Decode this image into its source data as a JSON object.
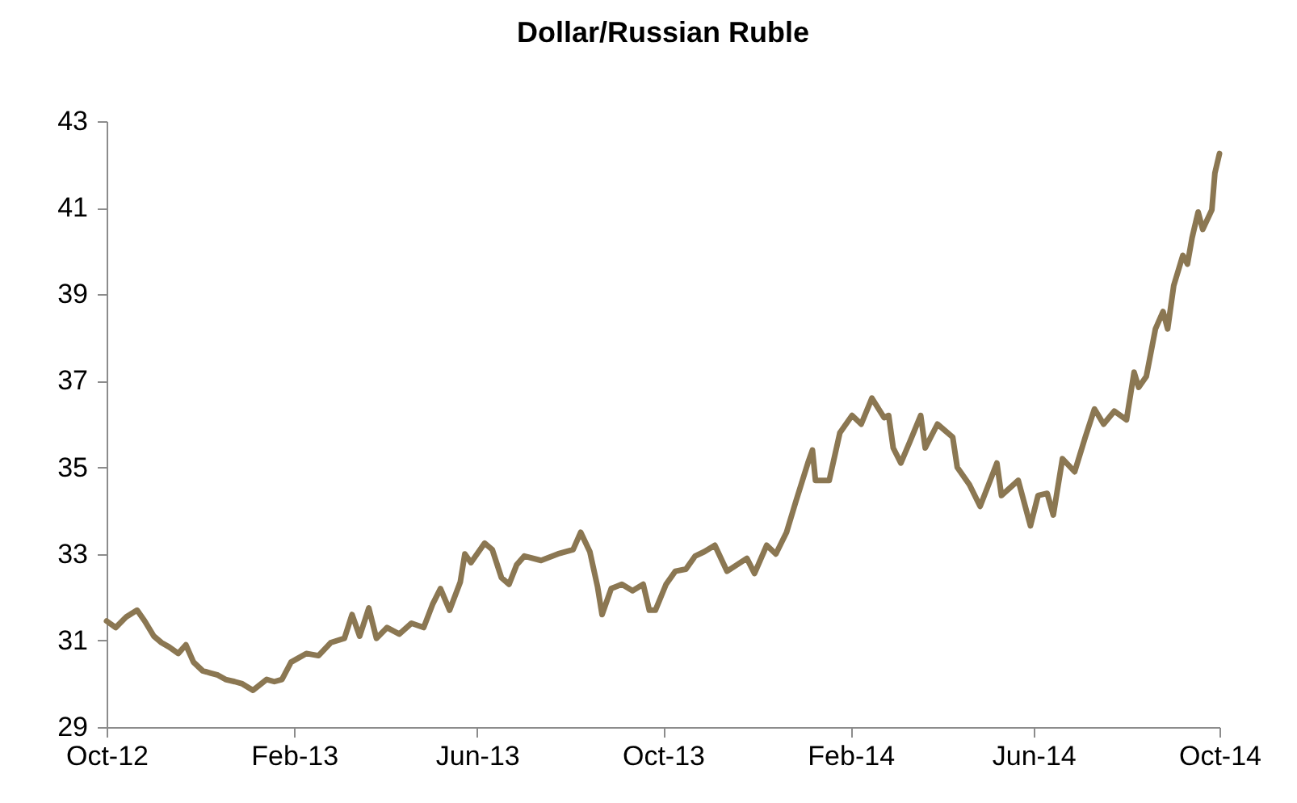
{
  "chart_data": {
    "type": "line",
    "title": "Dollar/Russian Ruble",
    "x": [
      "2012-10-01",
      "2012-10-07",
      "2012-10-14",
      "2012-10-21",
      "2012-10-26",
      "2012-11-01",
      "2012-11-06",
      "2012-11-11",
      "2012-11-17",
      "2012-11-22",
      "2012-11-27",
      "2012-12-03",
      "2012-12-08",
      "2012-12-13",
      "2012-12-18",
      "2012-12-24",
      "2012-12-29",
      "2013-01-05",
      "2013-01-14",
      "2013-01-19",
      "2013-01-24",
      "2013-01-30",
      "2013-02-09",
      "2013-02-17",
      "2013-02-25",
      "2013-03-06",
      "2013-03-11",
      "2013-03-16",
      "2013-03-22",
      "2013-03-27",
      "2013-04-03",
      "2013-04-11",
      "2013-04-19",
      "2013-04-27",
      "2013-05-03",
      "2013-05-08",
      "2013-05-14",
      "2013-05-21",
      "2013-05-24",
      "2013-05-28",
      "2013-06-06",
      "2013-06-11",
      "2013-06-17",
      "2013-06-22",
      "2013-06-27",
      "2013-07-02",
      "2013-07-13",
      "2013-07-24",
      "2013-08-03",
      "2013-08-08",
      "2013-08-14",
      "2013-08-19",
      "2013-08-22",
      "2013-08-28",
      "2013-09-04",
      "2013-09-11",
      "2013-09-18",
      "2013-09-22",
      "2013-09-26",
      "2013-10-03",
      "2013-10-09",
      "2013-10-16",
      "2013-10-22",
      "2013-10-28",
      "2013-11-04",
      "2013-11-12",
      "2013-11-25",
      "2013-11-30",
      "2013-12-08",
      "2013-12-14",
      "2013-12-21",
      "2013-12-27",
      "2014-01-04",
      "2014-01-07",
      "2014-01-09",
      "2014-01-18",
      "2014-01-25",
      "2014-02-02",
      "2014-02-08",
      "2014-02-15",
      "2014-02-23",
      "2014-02-26",
      "2014-03-01",
      "2014-03-06",
      "2014-03-12",
      "2014-03-19",
      "2014-03-22",
      "2014-03-30",
      "2014-04-09",
      "2014-04-12",
      "2014-04-20",
      "2014-04-27",
      "2014-05-08",
      "2014-05-11",
      "2014-05-22",
      "2014-05-30",
      "2014-06-04",
      "2014-06-10",
      "2014-06-14",
      "2014-06-20",
      "2014-06-28",
      "2014-07-05",
      "2014-07-11",
      "2014-07-17",
      "2014-07-24",
      "2014-08-01",
      "2014-08-06",
      "2014-08-09",
      "2014-08-14",
      "2014-08-20",
      "2014-08-25",
      "2014-08-28",
      "2014-09-01",
      "2014-09-07",
      "2014-09-10",
      "2014-09-13",
      "2014-09-17",
      "2014-09-20",
      "2014-09-26",
      "2014-09-28",
      "2014-10-01"
    ],
    "series": [
      {
        "color": "#8b7752",
        "values": [
          31.45,
          31.3,
          31.55,
          31.7,
          31.45,
          31.1,
          30.95,
          30.85,
          30.7,
          30.9,
          30.5,
          30.3,
          30.25,
          30.2,
          30.1,
          30.05,
          30.0,
          29.85,
          30.1,
          30.05,
          30.1,
          30.5,
          30.7,
          30.65,
          30.95,
          31.05,
          31.6,
          31.1,
          31.75,
          31.05,
          31.3,
          31.15,
          31.4,
          31.3,
          31.85,
          32.2,
          31.7,
          32.35,
          33.0,
          32.8,
          33.25,
          33.1,
          32.45,
          32.3,
          32.75,
          32.95,
          32.85,
          33.0,
          33.1,
          33.5,
          33.05,
          32.25,
          31.6,
          32.2,
          32.3,
          32.15,
          32.3,
          31.7,
          31.7,
          32.3,
          32.6,
          32.65,
          32.95,
          33.05,
          33.2,
          32.6,
          32.9,
          32.55,
          33.2,
          33.0,
          33.5,
          34.2,
          35.1,
          35.4,
          34.7,
          34.7,
          35.8,
          36.2,
          36.0,
          36.6,
          36.15,
          36.2,
          35.45,
          35.1,
          35.6,
          36.2,
          35.45,
          36.0,
          35.7,
          35.0,
          34.6,
          34.1,
          35.1,
          34.35,
          34.7,
          33.65,
          34.35,
          34.4,
          33.9,
          35.2,
          34.9,
          35.7,
          36.35,
          36.0,
          36.3,
          36.1,
          37.2,
          36.85,
          37.1,
          38.2,
          38.6,
          38.2,
          39.2,
          39.9,
          39.7,
          40.3,
          40.9,
          40.5,
          40.95,
          41.8,
          42.25
        ]
      }
    ],
    "xlim": [
      "2012-10-01",
      "2014-10-01"
    ],
    "xticks": [
      {
        "value": "2012-10-01",
        "label": "Oct-12"
      },
      {
        "value": "2013-02-01",
        "label": "Feb-13"
      },
      {
        "value": "2013-06-01",
        "label": "Jun-13"
      },
      {
        "value": "2013-10-01",
        "label": "Oct-13"
      },
      {
        "value": "2014-02-01",
        "label": "Feb-14"
      },
      {
        "value": "2014-06-01",
        "label": "Jun-14"
      },
      {
        "value": "2014-10-01",
        "label": "Oct-14"
      }
    ],
    "ylim": [
      29,
      43
    ],
    "yticks": [
      29,
      31,
      33,
      35,
      37,
      39,
      41,
      43
    ],
    "grid": false,
    "marker": "none",
    "line_style": "solid"
  }
}
